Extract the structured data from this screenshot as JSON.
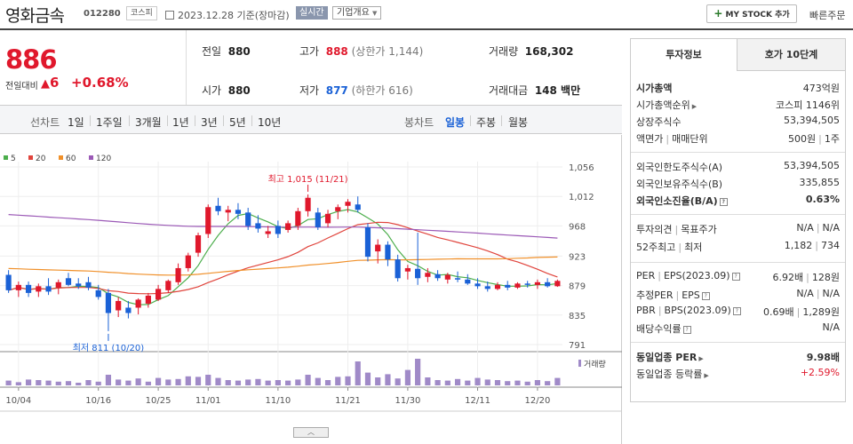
{
  "header": {
    "company_name": "영화금속",
    "code": "012280",
    "market": "코스피",
    "date_label": "2023.12.28 기준(장마감)",
    "live_label": "실시간",
    "overview_label": "기업개요",
    "mystock_label": "MY STOCK 추가",
    "quick_order_label": "빠른주문"
  },
  "quote": {
    "price": "886",
    "change_label": "전일대비",
    "change_value": "6",
    "change_pct": "+0.68%",
    "prev_close_label": "전일",
    "prev_close": "880",
    "open_label": "시가",
    "open": "880",
    "high_label": "고가",
    "high": "888",
    "high_limit": "(상한가 1,144)",
    "low_label": "저가",
    "low": "877",
    "low_limit": "(하한가 616)",
    "volume_label": "거래량",
    "volume": "168,302",
    "amount_label": "거래대금",
    "amount": "148 백만"
  },
  "period_bar": {
    "line_label": "선차트",
    "line_periods": [
      "1일",
      "1주일",
      "3개월",
      "1년",
      "3년",
      "5년",
      "10년"
    ],
    "candle_label": "봉차트",
    "candle_periods": [
      "일봉",
      "주봉",
      "월봉"
    ],
    "active_candle": "일봉"
  },
  "chart_data": {
    "type": "candlestick",
    "legend": [
      {
        "name": "5",
        "color": "#4cae4c"
      },
      {
        "name": "20",
        "color": "#e0443c"
      },
      {
        "name": "60",
        "color": "#f0902a"
      },
      {
        "name": "120",
        "color": "#9b59b6"
      }
    ],
    "y_ticks": [
      "1,056",
      "1,012",
      "968",
      "923",
      "879",
      "835",
      "791"
    ],
    "ylim": [
      791,
      1056
    ],
    "x_tick_labels": [
      "10/04",
      "10/16",
      "10/25",
      "11/01",
      "11/10",
      "11/21",
      "11/30",
      "12/11",
      "12/20"
    ],
    "x_tick_index": [
      1,
      9,
      15,
      20,
      27,
      34,
      40,
      47,
      53
    ],
    "high_annotation": "최고 1,015 (11/21)",
    "low_annotation": "최저 811 (10/20)",
    "volume_label": "거래량",
    "candles": [
      {
        "o": 895,
        "h": 902,
        "l": 868,
        "c": 872
      },
      {
        "o": 872,
        "h": 885,
        "l": 862,
        "c": 880
      },
      {
        "o": 880,
        "h": 885,
        "l": 862,
        "c": 868
      },
      {
        "o": 870,
        "h": 882,
        "l": 862,
        "c": 878
      },
      {
        "o": 878,
        "h": 890,
        "l": 865,
        "c": 870
      },
      {
        "o": 876,
        "h": 888,
        "l": 866,
        "c": 884
      },
      {
        "o": 890,
        "h": 898,
        "l": 878,
        "c": 880
      },
      {
        "o": 882,
        "h": 890,
        "l": 874,
        "c": 878
      },
      {
        "o": 884,
        "h": 892,
        "l": 872,
        "c": 876
      },
      {
        "o": 872,
        "h": 880,
        "l": 858,
        "c": 862
      },
      {
        "o": 868,
        "h": 874,
        "l": 811,
        "c": 838
      },
      {
        "o": 842,
        "h": 862,
        "l": 832,
        "c": 856
      },
      {
        "o": 846,
        "h": 856,
        "l": 830,
        "c": 838
      },
      {
        "o": 846,
        "h": 860,
        "l": 836,
        "c": 858
      },
      {
        "o": 852,
        "h": 868,
        "l": 846,
        "c": 864
      },
      {
        "o": 858,
        "h": 880,
        "l": 856,
        "c": 874
      },
      {
        "o": 872,
        "h": 888,
        "l": 868,
        "c": 886
      },
      {
        "o": 884,
        "h": 912,
        "l": 880,
        "c": 905
      },
      {
        "o": 905,
        "h": 928,
        "l": 900,
        "c": 924
      },
      {
        "o": 928,
        "h": 958,
        "l": 922,
        "c": 954
      },
      {
        "o": 956,
        "h": 1000,
        "l": 950,
        "c": 996
      },
      {
        "o": 998,
        "h": 1010,
        "l": 984,
        "c": 990
      },
      {
        "o": 988,
        "h": 998,
        "l": 975,
        "c": 992
      },
      {
        "o": 992,
        "h": 1002,
        "l": 978,
        "c": 986
      },
      {
        "o": 988,
        "h": 995,
        "l": 962,
        "c": 968
      },
      {
        "o": 972,
        "h": 984,
        "l": 958,
        "c": 964
      },
      {
        "o": 956,
        "h": 968,
        "l": 950,
        "c": 960
      },
      {
        "o": 968,
        "h": 976,
        "l": 950,
        "c": 956
      },
      {
        "o": 962,
        "h": 976,
        "l": 958,
        "c": 972
      },
      {
        "o": 968,
        "h": 995,
        "l": 962,
        "c": 990
      },
      {
        "o": 990,
        "h": 1015,
        "l": 982,
        "c": 1010
      },
      {
        "o": 988,
        "h": 995,
        "l": 962,
        "c": 966
      },
      {
        "o": 972,
        "h": 992,
        "l": 966,
        "c": 986
      },
      {
        "o": 990,
        "h": 1000,
        "l": 978,
        "c": 996
      },
      {
        "o": 998,
        "h": 1008,
        "l": 988,
        "c": 1004
      },
      {
        "o": 1000,
        "h": 1012,
        "l": 988,
        "c": 992
      },
      {
        "o": 966,
        "h": 972,
        "l": 915,
        "c": 922
      },
      {
        "o": 930,
        "h": 948,
        "l": 912,
        "c": 940
      },
      {
        "o": 940,
        "h": 945,
        "l": 908,
        "c": 918
      },
      {
        "o": 918,
        "h": 925,
        "l": 885,
        "c": 890
      },
      {
        "o": 900,
        "h": 910,
        "l": 888,
        "c": 905
      },
      {
        "o": 904,
        "h": 958,
        "l": 880,
        "c": 890
      },
      {
        "o": 892,
        "h": 905,
        "l": 884,
        "c": 898
      },
      {
        "o": 896,
        "h": 902,
        "l": 886,
        "c": 890
      },
      {
        "o": 888,
        "h": 898,
        "l": 882,
        "c": 895
      },
      {
        "o": 890,
        "h": 900,
        "l": 884,
        "c": 888
      },
      {
        "o": 888,
        "h": 896,
        "l": 880,
        "c": 882
      },
      {
        "o": 882,
        "h": 890,
        "l": 874,
        "c": 878
      },
      {
        "o": 878,
        "h": 885,
        "l": 870,
        "c": 874
      },
      {
        "o": 874,
        "h": 884,
        "l": 872,
        "c": 880
      },
      {
        "o": 880,
        "h": 886,
        "l": 872,
        "c": 876
      },
      {
        "o": 876,
        "h": 884,
        "l": 874,
        "c": 882
      },
      {
        "o": 882,
        "h": 886,
        "l": 876,
        "c": 880
      },
      {
        "o": 880,
        "h": 888,
        "l": 874,
        "c": 884
      },
      {
        "o": 884,
        "h": 890,
        "l": 876,
        "c": 878
      },
      {
        "o": 878,
        "h": 888,
        "l": 877,
        "c": 886
      }
    ],
    "volumes": [
      18,
      12,
      22,
      20,
      18,
      14,
      16,
      10,
      20,
      14,
      40,
      22,
      18,
      26,
      14,
      28,
      22,
      24,
      34,
      32,
      40,
      28,
      20,
      18,
      22,
      24,
      18,
      20,
      18,
      22,
      40,
      28,
      20,
      32,
      34,
      90,
      48,
      30,
      42,
      26,
      58,
      100,
      30,
      20,
      18,
      24,
      18,
      28,
      22,
      20,
      16,
      18,
      14,
      20,
      16,
      28
    ]
  },
  "invest_panel": {
    "tab_active": "투자정보",
    "tab_other": "호가 10단계",
    "market_cap_label": "시가총액",
    "market_cap": "473억원",
    "cap_rank_label": "시가총액순위",
    "cap_rank": "코스피 1146위",
    "shares_label": "상장주식수",
    "shares": "53,394,505",
    "face_label": "액면가",
    "unit_label": "매매단위",
    "face": "500원",
    "unit": "1주",
    "foreign_limit_label": "외국인한도주식수(A)",
    "foreign_limit": "53,394,505",
    "foreign_hold_label": "외국인보유주식수(B)",
    "foreign_hold": "335,855",
    "foreign_ratio_label": "외국인소진율(B/A)",
    "foreign_ratio": "0.63%",
    "opinion_label": "투자의견",
    "target_label": "목표주가",
    "opinion": "N/A",
    "target": "N/A",
    "w52_label": "52주최고",
    "w52_low_label": "최저",
    "w52_high": "1,182",
    "w52_low": "734",
    "per_label": "PER",
    "eps_label": "EPS(2023.09)",
    "per": "6.92배",
    "eps": "128원",
    "est_per_label": "추정PER",
    "est_eps_label": "EPS",
    "est_per": "N/A",
    "est_eps": "N/A",
    "pbr_label": "PBR",
    "bps_label": "BPS(2023.09)",
    "pbr": "0.69배",
    "bps": "1,289원",
    "dividend_label": "배당수익률",
    "dividend": "N/A",
    "ind_per_label": "동일업종 PER",
    "ind_per": "9.98배",
    "ind_rate_label": "동일업종 등락률",
    "ind_rate": "+2.59%"
  }
}
